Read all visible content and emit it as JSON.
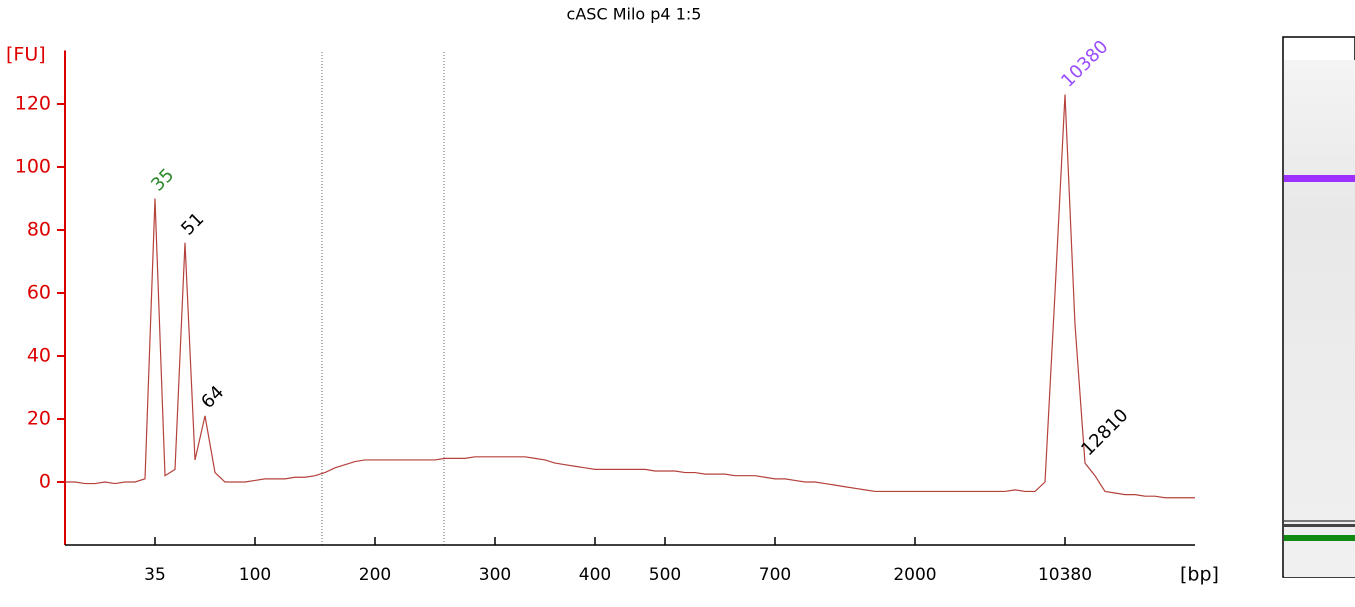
{
  "chart_data": {
    "type": "line",
    "title": "cASC Milo p4 1:5",
    "y_label": "[FU]",
    "x_label": "[bp]",
    "color": "#b5413b",
    "axis_color": "#dd0000",
    "categories": [
      null,
      null,
      null,
      null,
      null,
      null,
      null,
      null,
      null,
      "35",
      null,
      null,
      null,
      null,
      null,
      null,
      null,
      null,
      null,
      "100",
      null,
      null,
      null,
      null,
      null,
      null,
      null,
      null,
      null,
      null,
      null,
      "200",
      null,
      null,
      null,
      null,
      null,
      null,
      null,
      null,
      null,
      null,
      null,
      "300",
      null,
      null,
      null,
      null,
      null,
      null,
      null,
      null,
      null,
      "400",
      null,
      null,
      null,
      null,
      null,
      null,
      "500",
      null,
      null,
      null,
      null,
      null,
      null,
      null,
      null,
      null,
      null,
      "700",
      null,
      null,
      null,
      null,
      null,
      null,
      null,
      null,
      null,
      null,
      null,
      null,
      null,
      "2000",
      null,
      null,
      null,
      null,
      null,
      null,
      null,
      null,
      null,
      null,
      null,
      null,
      null,
      null,
      "10380",
      null,
      null,
      null,
      null,
      null,
      null,
      null,
      null,
      null,
      null,
      null,
      null,
      null
    ],
    "values": [
      0,
      0,
      -0.5,
      -0.5,
      0,
      -0.5,
      0,
      0,
      1,
      90,
      2,
      4,
      76,
      7,
      21,
      3,
      0,
      0,
      0,
      0.5,
      1,
      1,
      1,
      1.5,
      1.5,
      2,
      3,
      4.5,
      5.5,
      6.5,
      7,
      7,
      7,
      7,
      7,
      7,
      7,
      7,
      7.5,
      7.5,
      7.5,
      8,
      8,
      8,
      8,
      8,
      8,
      7.5,
      7,
      6,
      5.5,
      5,
      4.5,
      4,
      4,
      4,
      4,
      4,
      4,
      3.5,
      3.5,
      3.5,
      3,
      3,
      2.5,
      2.5,
      2.5,
      2,
      2,
      2,
      1.5,
      1,
      1,
      0.5,
      0,
      0,
      -0.5,
      -1,
      -1.5,
      -2,
      -2.5,
      -3,
      -3,
      -3,
      -3,
      -3,
      -3,
      -3,
      -3,
      -3,
      -3,
      -3,
      -3,
      -3,
      -3,
      -2.5,
      -3,
      -3,
      0,
      60,
      123,
      50,
      6,
      2,
      -3,
      -3.5,
      -4,
      -4,
      -4.5,
      -4.5,
      -5,
      -5,
      -5,
      -5
    ],
    "ylim": [
      -20,
      137
    ],
    "yticks": [
      0,
      20,
      40,
      60,
      80,
      100,
      120
    ],
    "annotations": [
      {
        "text": "35",
        "index": 9,
        "color": "#2a8a2a"
      },
      {
        "text": "51",
        "index": 12,
        "color": "#000000"
      },
      {
        "text": "64",
        "index": 14,
        "color": "#000000"
      },
      {
        "text": "10380",
        "index": 100,
        "color": "#9b4dff"
      },
      {
        "text": "12810",
        "index": 102,
        "color": "#000000"
      }
    ]
  }
}
